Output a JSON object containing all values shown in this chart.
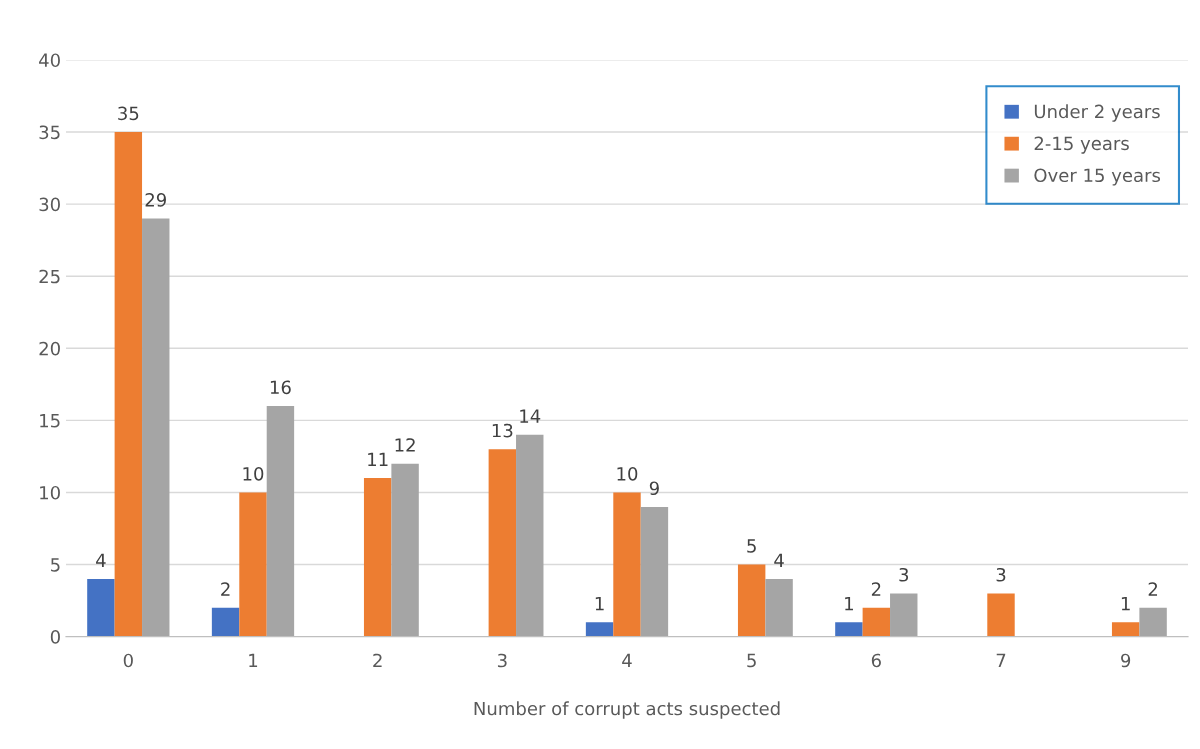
{
  "chart_data": {
    "type": "bar",
    "xlabel": "Number of corrupt acts suspected",
    "categories": [
      "0",
      "1",
      "2",
      "3",
      "4",
      "5",
      "6",
      "7",
      "9"
    ],
    "series": [
      {
        "name": "Under 2 years",
        "color": "#4472c4",
        "values": [
          4,
          2,
          null,
          null,
          1,
          null,
          1,
          null,
          null
        ]
      },
      {
        "name": "2-15 years",
        "color": "#ed7d31",
        "values": [
          35,
          10,
          11,
          13,
          10,
          5,
          2,
          3,
          1
        ]
      },
      {
        "name": "Over 15 years",
        "color": "#a5a5a5",
        "values": [
          29,
          16,
          12,
          14,
          9,
          4,
          3,
          null,
          2
        ]
      }
    ],
    "ylim": [
      0,
      40
    ],
    "yticks": [
      0,
      5,
      10,
      15,
      20,
      25,
      30,
      35,
      40
    ],
    "data_labels": true,
    "grid": "y",
    "legend": "top right"
  }
}
